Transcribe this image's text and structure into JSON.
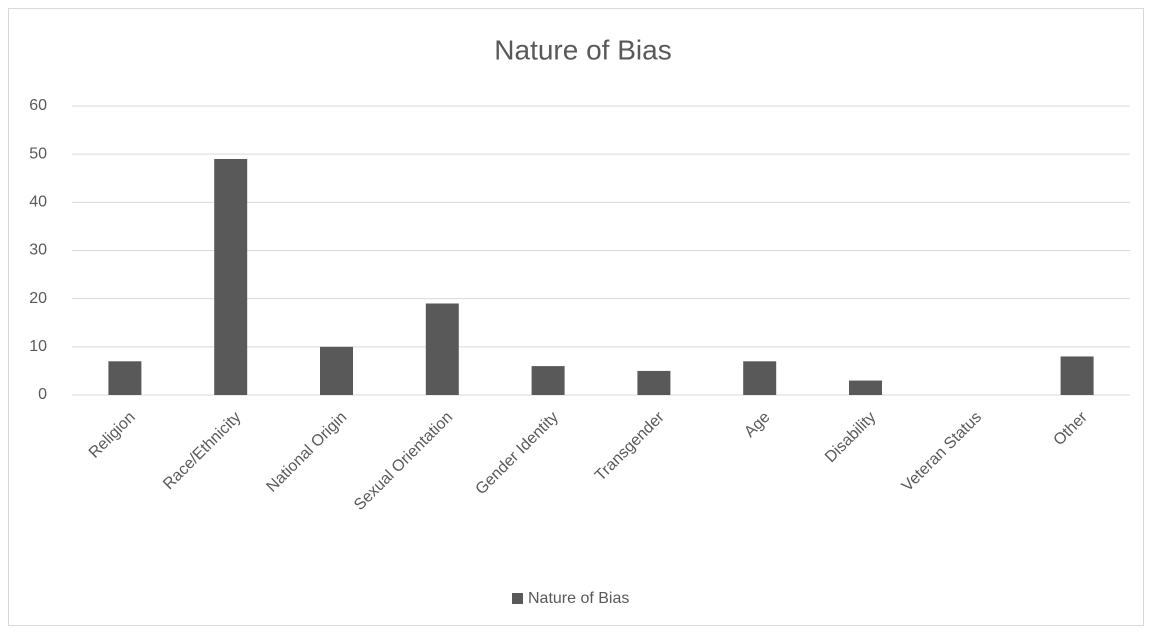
{
  "chart_data": {
    "type": "bar",
    "title": "Nature of Bias",
    "categories": [
      "Religion",
      "Race/Ethnicity",
      "National Origin",
      "Sexual Orientation",
      "Gender Identity",
      "Transgender",
      "Age",
      "Disability",
      "Veteran Status",
      "Other"
    ],
    "series": [
      {
        "name": "Nature of Bias",
        "color": "#595959",
        "values": [
          7,
          49,
          10,
          19,
          6,
          5,
          7,
          3,
          0,
          8
        ]
      }
    ],
    "ylim": [
      0,
      60
    ],
    "yticks": [
      0,
      10,
      20,
      30,
      40,
      50,
      60
    ],
    "grid": true,
    "legend": "bottom"
  }
}
